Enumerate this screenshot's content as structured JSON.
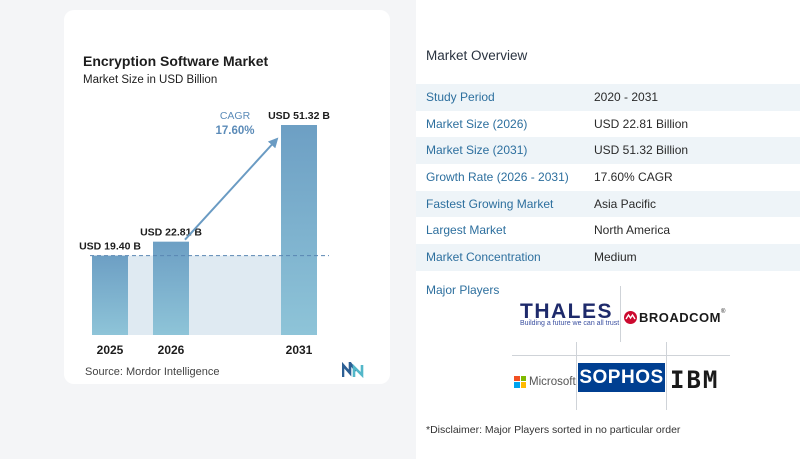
{
  "chart_data": {
    "type": "bar",
    "title": "Encryption Software Market",
    "subtitle": "Market Size in USD Billion",
    "categories": [
      "2025",
      "2026",
      "2031"
    ],
    "values": [
      19.4,
      22.81,
      51.32
    ],
    "data_labels": [
      "USD 19.40 B",
      "USD 22.81 B",
      "USD 51.32 B"
    ],
    "xlabel": "",
    "ylabel": "",
    "ylim": [
      0,
      51.32
    ],
    "grid": false,
    "reference_line_value": 19.4,
    "annotation": {
      "label": "CAGR",
      "value": "17.60%"
    },
    "colors": {
      "bar_top": "#6d9fc4",
      "bar_bottom": "#8ec4d8",
      "shade": "#dfeaf2",
      "arrow": "#6a9bc3",
      "annotation": "#5b8bb8"
    }
  },
  "source": "Source:  Mordor Intelligence",
  "brand_icon": "mordor-intelligence-logo",
  "overview": {
    "title": "Market Overview",
    "rows": [
      {
        "label": "Study Period",
        "value": "2020 - 2031"
      },
      {
        "label": "Market Size (2026)",
        "value": "USD 22.81 Billion"
      },
      {
        "label": "Market Size (2031)",
        "value": "USD 51.32 Billion"
      },
      {
        "label": "Growth Rate (2026 - 2031)",
        "value": "17.60% CAGR"
      },
      {
        "label": "Fastest Growing Market",
        "value": "Asia Pacific"
      },
      {
        "label": "Largest Market",
        "value": "North America"
      },
      {
        "label": "Market Concentration",
        "value": "Medium"
      }
    ],
    "players_label": "Major Players",
    "players": {
      "thales": {
        "name": "THALES",
        "tagline": "Building a future we can all trust"
      },
      "broadcom": {
        "name": "BROADCOM",
        "suffix": "®"
      },
      "microsoft": {
        "name": "Microsoft"
      },
      "sophos": {
        "name": "SOPHOS"
      },
      "ibm": {
        "name": "IBM"
      }
    },
    "disclaimer": "*Disclaimer: Major Players sorted in no particular order"
  }
}
